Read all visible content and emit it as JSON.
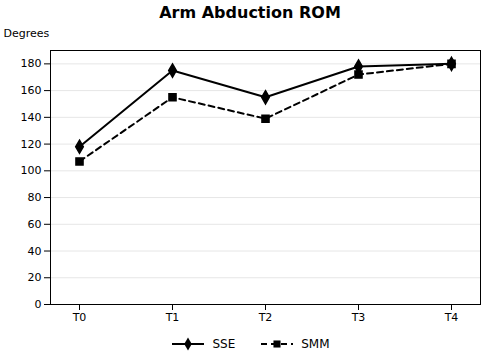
{
  "chart_data": {
    "type": "line",
    "title": "Arm Abduction ROM",
    "ylabel": "Degrees",
    "categories": [
      "T0",
      "T1",
      "T2",
      "T3",
      "T4"
    ],
    "series": [
      {
        "name": "SSE",
        "color": "#000000",
        "values": [
          118,
          175,
          155,
          178,
          180
        ],
        "marker": "diamond",
        "line_style": "solid"
      },
      {
        "name": "SMM",
        "color": "#000000",
        "values": [
          107,
          155,
          139,
          172,
          180
        ],
        "marker": "square",
        "line_style": "dashed"
      }
    ],
    "ylim": [
      0,
      190
    ],
    "yticks": [
      0,
      20,
      40,
      60,
      80,
      100,
      120,
      140,
      160,
      180
    ],
    "grid": true,
    "legend": "bottom"
  }
}
